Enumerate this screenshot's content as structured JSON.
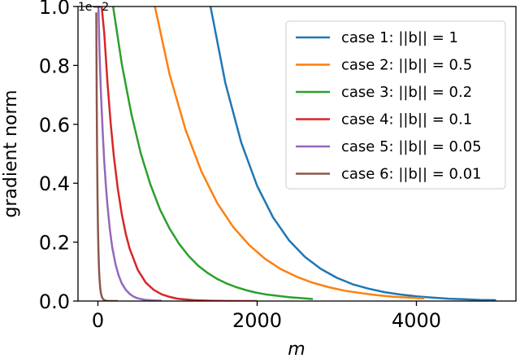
{
  "chart_data": {
    "type": "line",
    "xlabel": "m",
    "ylabel": "gradient norm",
    "y_offset_label": "1e−2",
    "xlim": [
      -250,
      5250
    ],
    "ylim": [
      0.0,
      1.0
    ],
    "xticks": [
      0,
      2000,
      4000
    ],
    "xtick_labels": [
      "0",
      "2000",
      "4000"
    ],
    "yticks": [
      0.0,
      0.2,
      0.4,
      0.6,
      0.8,
      1.0
    ],
    "ytick_labels": [
      "0.0",
      "0.2",
      "0.4",
      "0.6",
      "0.8",
      "1.0"
    ],
    "grid": false,
    "legend_position": "upper right",
    "series": [
      {
        "name": "case 1: ||b|| = 1",
        "color": "#1f77b4",
        "x": [
          1400,
          1600,
          1800,
          2000,
          2200,
          2400,
          2600,
          2800,
          3000,
          3200,
          3400,
          3600,
          3800,
          4000,
          4200,
          4400,
          4600,
          4800,
          5000
        ],
        "y": [
          1.02,
          0.741,
          0.538,
          0.391,
          0.284,
          0.206,
          0.15,
          0.109,
          0.079,
          0.057,
          0.042,
          0.03,
          0.022,
          0.016,
          0.012,
          0.008,
          0.006,
          0.004,
          0.003
        ]
      },
      {
        "name": "case 2: ||b|| = 0.5",
        "color": "#ff7f0e",
        "x": [
          700,
          900,
          1100,
          1300,
          1500,
          1700,
          1900,
          2100,
          2300,
          2500,
          2700,
          2900,
          3100,
          3300,
          3500,
          3700,
          3900,
          4100
        ],
        "y": [
          1.02,
          0.77,
          0.582,
          0.44,
          0.332,
          0.251,
          0.19,
          0.143,
          0.108,
          0.082,
          0.062,
          0.047,
          0.035,
          0.027,
          0.02,
          0.015,
          0.012,
          0.009
        ]
      },
      {
        "name": "case 3: ||b|| = 0.2",
        "color": "#2ca02c",
        "x": [
          180,
          300,
          420,
          540,
          660,
          780,
          900,
          1020,
          1140,
          1260,
          1380,
          1500,
          1620,
          1740,
          1860,
          1980,
          2100,
          2400,
          2700
        ],
        "y": [
          1.02,
          0.805,
          0.635,
          0.5,
          0.395,
          0.311,
          0.246,
          0.194,
          0.153,
          0.12,
          0.095,
          0.075,
          0.059,
          0.047,
          0.037,
          0.029,
          0.023,
          0.013,
          0.007
        ]
      },
      {
        "name": "case 4: ||b|| = 0.1",
        "color": "#d62728",
        "x": [
          40,
          80,
          120,
          160,
          200,
          250,
          300,
          350,
          400,
          500,
          600,
          700,
          800,
          900,
          1000,
          1200,
          1400,
          1600,
          1800,
          2000
        ],
        "y": [
          1.02,
          0.91,
          0.741,
          0.604,
          0.492,
          0.381,
          0.295,
          0.228,
          0.177,
          0.106,
          0.063,
          0.038,
          0.023,
          0.014,
          0.008,
          0.003,
          0.001,
          0.0004,
          0.0001,
          0.0
        ]
      },
      {
        "name": "case 5: ||b|| = 0.05",
        "color": "#9467bd",
        "x": [
          5,
          20,
          40,
          60,
          80,
          100,
          120,
          150,
          180,
          220,
          260,
          300,
          350,
          400,
          450,
          500,
          600,
          700,
          800
        ],
        "y": [
          1.02,
          0.84,
          0.694,
          0.574,
          0.474,
          0.392,
          0.324,
          0.243,
          0.183,
          0.126,
          0.087,
          0.06,
          0.038,
          0.024,
          0.015,
          0.009,
          0.004,
          0.002,
          0.001
        ]
      },
      {
        "name": "case 6: ||b|| = 0.01",
        "color": "#8c564b",
        "x": [
          -20,
          -15,
          -10,
          -5,
          0,
          5,
          10,
          15,
          20,
          30,
          40,
          50,
          60,
          80,
          100,
          130,
          160,
          200,
          250
        ],
        "y": [
          0.98,
          0.7,
          0.5,
          0.36,
          0.26,
          0.19,
          0.14,
          0.1,
          0.075,
          0.042,
          0.024,
          0.014,
          0.008,
          0.003,
          0.001,
          0.0003,
          0.0001,
          0.0,
          0.0
        ]
      }
    ]
  }
}
